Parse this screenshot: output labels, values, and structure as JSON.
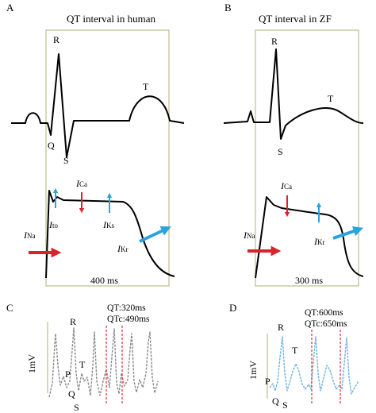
{
  "panels": {
    "A": {
      "letter": "A",
      "title": "QT interval in human",
      "ecg_labels": {
        "R": "R",
        "Q": "Q",
        "S": "S",
        "T": "T"
      },
      "currents": {
        "na": {
          "main": "I",
          "sub": "Na"
        },
        "ca": {
          "main": "I",
          "sub": "Ca"
        },
        "to": {
          "main": "I",
          "sub": "to"
        },
        "ks": {
          "main": "I",
          "sub": "Ks"
        },
        "kr": {
          "main": "I",
          "sub": "Kr"
        }
      },
      "duration": "400 ms"
    },
    "B": {
      "letter": "B",
      "title": "QT interval in ZF",
      "ecg_labels": {
        "R": "R",
        "S": "S",
        "T": "T"
      },
      "currents": {
        "na": {
          "main": "I",
          "sub": "Na"
        },
        "ca": {
          "main": "I",
          "sub": "Ca"
        },
        "kr": {
          "main": "I",
          "sub": "Kr"
        }
      },
      "duration": "300 ms"
    },
    "C": {
      "letter": "C",
      "qt": "QT:320ms",
      "qtc": "QTc:490ms",
      "ylabel": "1mV",
      "labels": {
        "R": "R",
        "T": "T",
        "P": "P",
        "Q": "Q",
        "S": "S"
      }
    },
    "D": {
      "letter": "D",
      "qt": "QT:600ms",
      "qtc": "QTc:650ms",
      "ylabel": "1mV",
      "labels": {
        "R": "R",
        "T": "T",
        "P": "P",
        "Q": "Q",
        "S": "S"
      }
    }
  },
  "colors": {
    "box": "#b5ad7a",
    "inward_current": "#d9232b",
    "outward_current": "#2aa3dd",
    "trace_c": "#8a8a8a",
    "trace_d": "#6fb3e0",
    "qt_marker": "#e03030",
    "scale_bar": "#b5ad7a"
  }
}
